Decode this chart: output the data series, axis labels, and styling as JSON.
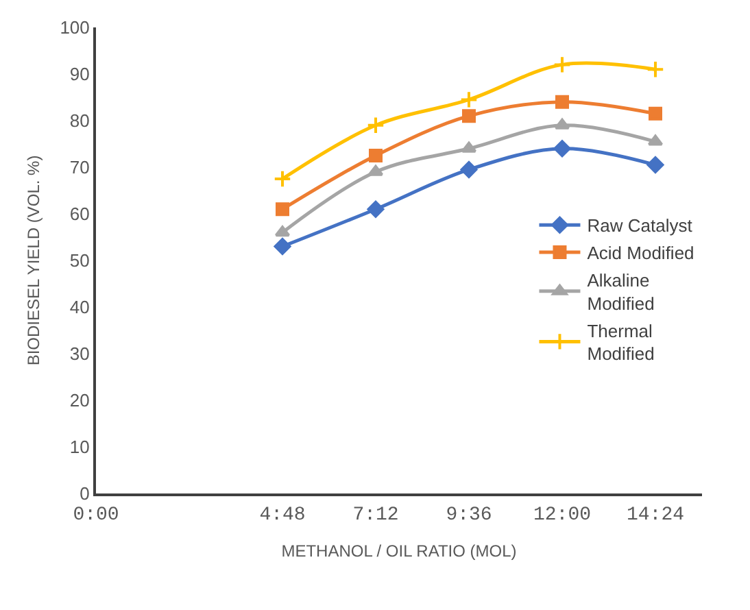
{
  "chart_data": {
    "type": "line",
    "xlabel": "METHANOL / OIL RATIO (MOL)",
    "ylabel": "BIODIESEL YIELD (VOL. %)",
    "x": [
      4.8,
      7.2,
      9.6,
      12,
      14.4
    ],
    "xlim": [
      0,
      15.6
    ],
    "xticks": [
      {
        "value": 0,
        "label": "0:00"
      },
      {
        "value": 4.8,
        "label": "4:48"
      },
      {
        "value": 7.2,
        "label": "7:12"
      },
      {
        "value": 9.6,
        "label": "9:36"
      },
      {
        "value": 12,
        "label": "12:00"
      },
      {
        "value": 14.4,
        "label": "14:24"
      }
    ],
    "ylim": [
      0,
      100
    ],
    "yticks": [
      0,
      10,
      20,
      30,
      40,
      50,
      60,
      70,
      80,
      90,
      100
    ],
    "legend": "right",
    "series": [
      {
        "name": "Raw Catalyst",
        "color": "#4472c4",
        "marker": "diamond",
        "values": [
          53,
          61,
          69.5,
          74,
          70.5
        ]
      },
      {
        "name": "Acid Modified",
        "color": "#ed7d31",
        "marker": "square",
        "values": [
          61,
          72.5,
          81,
          84,
          81.5
        ]
      },
      {
        "name": "Alkaline Modified",
        "color": "#a5a5a5",
        "marker": "triangle",
        "values": [
          56,
          69,
          74,
          79,
          75.5
        ]
      },
      {
        "name": "Thermal Modified",
        "color": "#ffc000",
        "marker": "cross",
        "values": [
          67.5,
          79,
          84.5,
          92,
          91
        ]
      }
    ]
  }
}
